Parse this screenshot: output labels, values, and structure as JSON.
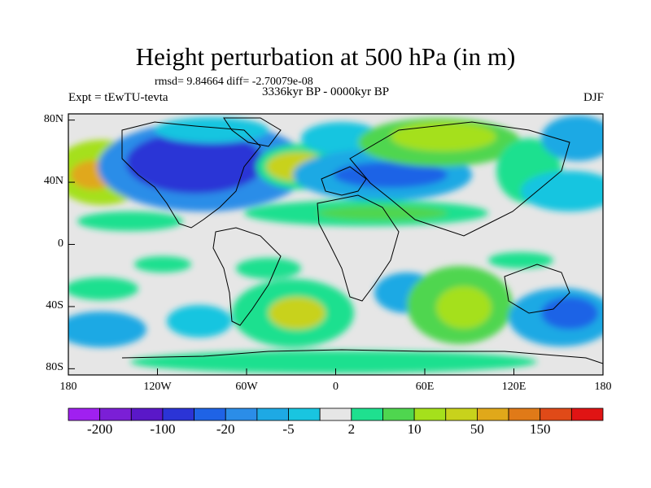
{
  "header": {
    "title": "Height perturbation at 500 hPa (in m)",
    "stats": "rmsd= 9.84664 diff= -2.70079e-08",
    "period": "3336kyr BP - 0000kyr BP",
    "experiment": "Expt = tEwTU-tevta",
    "season": "DJF"
  },
  "axes": {
    "lat_ticks": [
      {
        "value": 80,
        "label": "80N"
      },
      {
        "value": 40,
        "label": "40N"
      },
      {
        "value": 0,
        "label": "0"
      },
      {
        "value": -40,
        "label": "40S"
      },
      {
        "value": -80,
        "label": "80S"
      }
    ],
    "lon_ticks": [
      {
        "value": -180,
        "label": "180"
      },
      {
        "value": -120,
        "label": "120W"
      },
      {
        "value": -60,
        "label": "60W"
      },
      {
        "value": 0,
        "label": "0"
      },
      {
        "value": 60,
        "label": "60E"
      },
      {
        "value": 120,
        "label": "120E"
      },
      {
        "value": 180,
        "label": "180"
      }
    ]
  },
  "colorbar": {
    "colors": [
      "#a020f0",
      "#7b1fd6",
      "#5a18c8",
      "#2b34d6",
      "#1f63e6",
      "#2b8de8",
      "#1ea9e4",
      "#19c5e0",
      "#e6e6e6",
      "#1fe08f",
      "#4fd64f",
      "#a5e01c",
      "#c8d21c",
      "#e0a81a",
      "#e07a18",
      "#e04a18",
      "#e01414"
    ],
    "labels": [
      {
        "index": 1,
        "text": "-200"
      },
      {
        "index": 3,
        "text": "-100"
      },
      {
        "index": 5,
        "text": "-20"
      },
      {
        "index": 7,
        "text": "-5"
      },
      {
        "index": 9,
        "text": "2"
      },
      {
        "index": 11,
        "text": "10"
      },
      {
        "index": 13,
        "text": "50"
      },
      {
        "index": 15,
        "text": "150"
      }
    ]
  }
}
